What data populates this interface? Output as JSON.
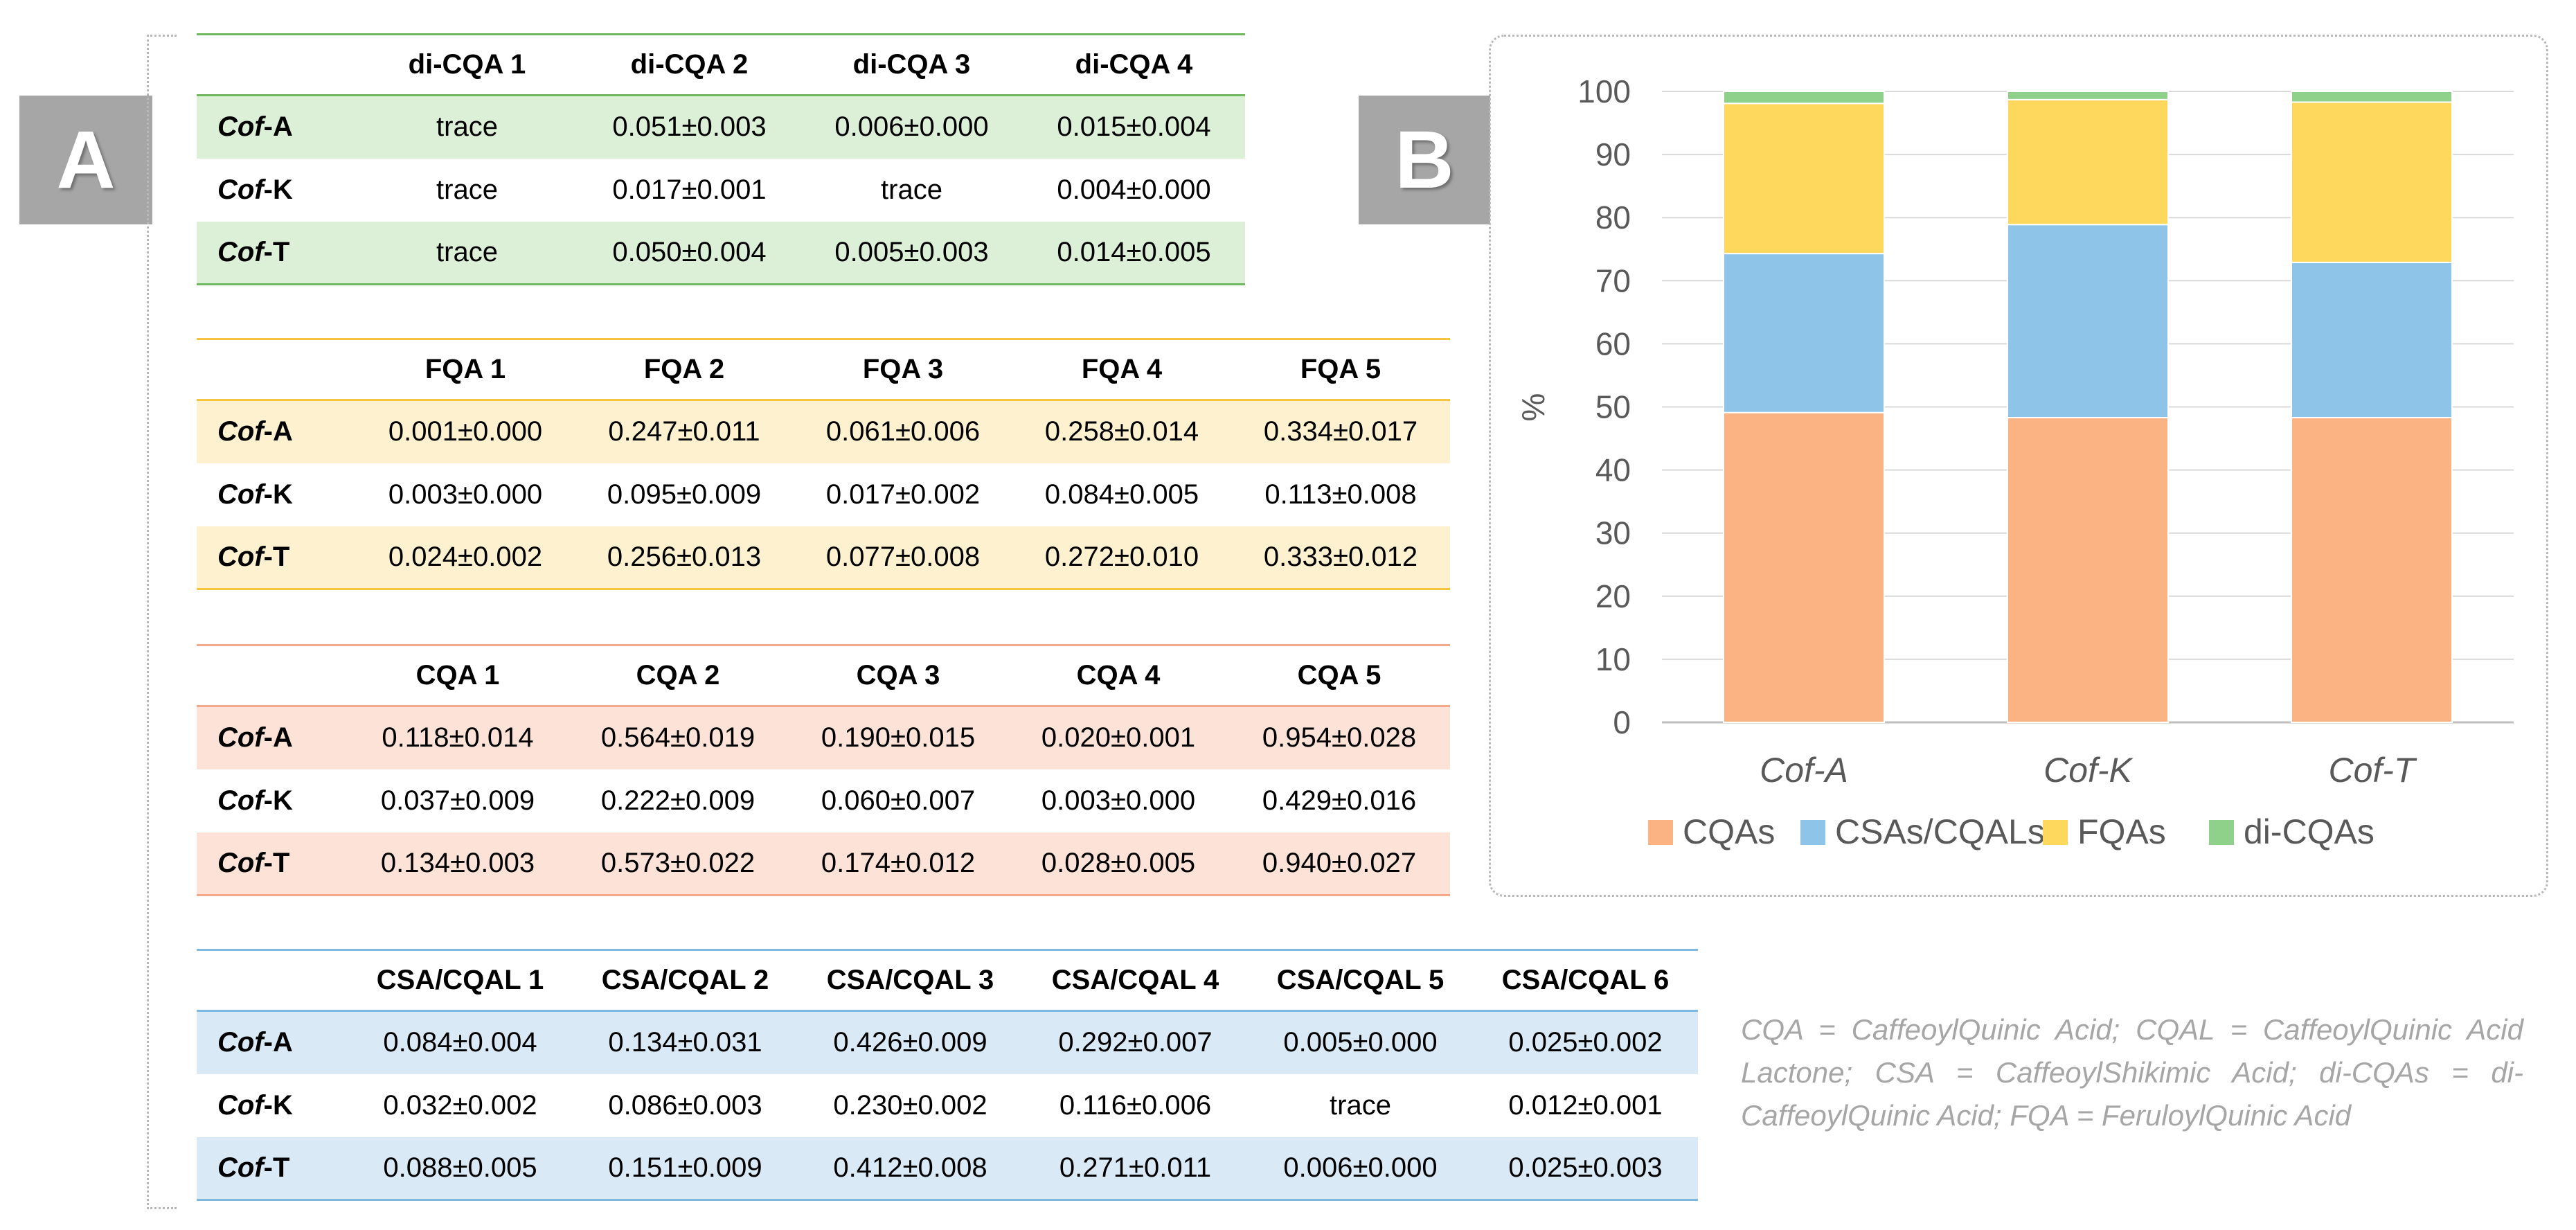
{
  "panels": {
    "a": "A",
    "b": "B"
  },
  "tables": {
    "dicqa": {
      "headers": [
        "",
        "di-CQA 1",
        "di-CQA 2",
        "di-CQA 3",
        "di-CQA 4"
      ],
      "rows": [
        {
          "prefix": "Cof",
          "suffix": "-A",
          "cells": [
            "trace",
            "0.051±0.003",
            "0.006±0.000",
            "0.015±0.004"
          ]
        },
        {
          "prefix": "Cof",
          "suffix": "-K",
          "cells": [
            "trace",
            "0.017±0.001",
            "trace",
            "0.004±0.000"
          ]
        },
        {
          "prefix": "Cof",
          "suffix": "-T",
          "cells": [
            "trace",
            "0.050±0.004",
            "0.005±0.003",
            "0.014±0.005"
          ]
        }
      ]
    },
    "fqa": {
      "headers": [
        "",
        "FQA 1",
        "FQA 2",
        "FQA 3",
        "FQA 4",
        "FQA 5"
      ],
      "rows": [
        {
          "prefix": "Cof",
          "suffix": "-A",
          "cells": [
            "0.001±0.000",
            "0.247±0.011",
            "0.061±0.006",
            "0.258±0.014",
            "0.334±0.017"
          ]
        },
        {
          "prefix": "Cof",
          "suffix": "-K",
          "cells": [
            "0.003±0.000",
            "0.095±0.009",
            "0.017±0.002",
            "0.084±0.005",
            "0.113±0.008"
          ]
        },
        {
          "prefix": "Cof",
          "suffix": "-T",
          "cells": [
            "0.024±0.002",
            "0.256±0.013",
            "0.077±0.008",
            "0.272±0.010",
            "0.333±0.012"
          ]
        }
      ]
    },
    "cqa": {
      "headers": [
        "",
        "CQA 1",
        "CQA 2",
        "CQA 3",
        "CQA 4",
        "CQA 5"
      ],
      "rows": [
        {
          "prefix": "Cof",
          "suffix": "-A",
          "cells": [
            "0.118±0.014",
            "0.564±0.019",
            "0.190±0.015",
            "0.020±0.001",
            "0.954±0.028"
          ]
        },
        {
          "prefix": "Cof",
          "suffix": "-K",
          "cells": [
            "0.037±0.009",
            "0.222±0.009",
            "0.060±0.007",
            "0.003±0.000",
            "0.429±0.016"
          ]
        },
        {
          "prefix": "Cof",
          "suffix": "-T",
          "cells": [
            "0.134±0.003",
            "0.573±0.022",
            "0.174±0.012",
            "0.028±0.005",
            "0.940±0.027"
          ]
        }
      ]
    },
    "csa": {
      "headers": [
        "",
        "CSA/CQAL 1",
        "CSA/CQAL 2",
        "CSA/CQAL 3",
        "CSA/CQAL 4",
        "CSA/CQAL 5",
        "CSA/CQAL 6"
      ],
      "rows": [
        {
          "prefix": "Cof",
          "suffix": "-A",
          "cells": [
            "0.084±0.004",
            "0.134±0.031",
            "0.426±0.009",
            "0.292±0.007",
            "0.005±0.000",
            "0.025±0.002"
          ]
        },
        {
          "prefix": "Cof",
          "suffix": "-K",
          "cells": [
            "0.032±0.002",
            "0.086±0.003",
            "0.230±0.002",
            "0.116±0.006",
            "trace",
            "0.012±0.001"
          ]
        },
        {
          "prefix": "Cof",
          "suffix": "-T",
          "cells": [
            "0.088±0.005",
            "0.151±0.009",
            "0.412±0.008",
            "0.271±0.011",
            "0.006±0.000",
            "0.025±0.003"
          ]
        }
      ]
    }
  },
  "footnote": "CQA = CaffeoylQuinic Acid; CQAL = CaffeoylQuinic Acid Lactone; CSA = CaffeoylShikimic Acid; di-CQAs = di-CaffeoylQuinic Acid; FQA = FeruloylQuinic Acid",
  "chart_data": {
    "type": "bar",
    "stacked": true,
    "categories": [
      "Cof-A",
      "Cof-K",
      "Cof-T"
    ],
    "series": [
      {
        "name": "CQAs",
        "color": "#fbb383",
        "values": [
          49.1,
          48.3,
          48.3
        ]
      },
      {
        "name": "CSAs/CQALs",
        "color": "#8ec4e8",
        "values": [
          25.2,
          30.6,
          24.6
        ]
      },
      {
        "name": "FQAs",
        "color": "#fdd85d",
        "values": [
          23.8,
          19.8,
          25.4
        ]
      },
      {
        "name": "di-CQAs",
        "color": "#8fd18a",
        "values": [
          1.9,
          1.3,
          1.7
        ]
      }
    ],
    "ylabel": "%",
    "xlabel": "",
    "ylim": [
      0,
      100
    ],
    "yticks": [
      0,
      10,
      20,
      30,
      40,
      50,
      60,
      70,
      80,
      90,
      100
    ],
    "grid": true,
    "legend": "bottom"
  }
}
